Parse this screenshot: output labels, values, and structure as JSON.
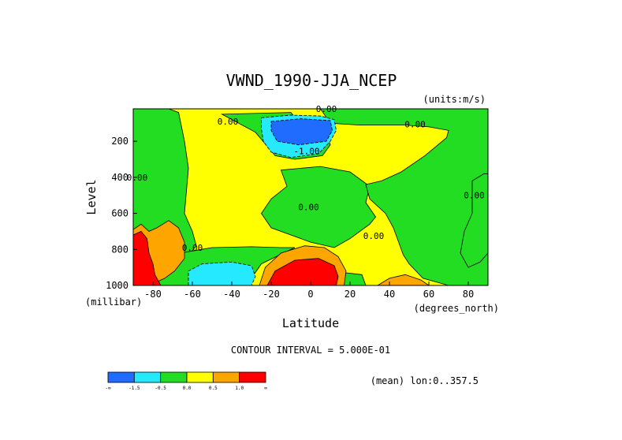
{
  "chart_data": {
    "type": "heatmap",
    "title": "VWND_1990-JJA_NCEP",
    "units_note": "(units:m/s)",
    "xlabel": "Latitude",
    "xunits": "(degrees_north)",
    "ylabel": "Level",
    "yunits": "(millibar)",
    "xlim": [
      -90,
      90
    ],
    "ylim": [
      1000,
      0
    ],
    "xticks": [
      -80,
      -60,
      -40,
      -20,
      0,
      20,
      40,
      60,
      80
    ],
    "xtick_labels": [
      "-80",
      "-60",
      "-40",
      "-20",
      "0",
      "20",
      "40",
      "60",
      "80"
    ],
    "yticks": [
      200,
      400,
      600,
      800,
      1000
    ],
    "ytick_labels": [
      "200",
      "400",
      "600",
      "800",
      "1000"
    ],
    "contour_interval_text": "CONTOUR INTERVAL = 5.000E-01",
    "mean_note": "(mean) lon:0..357.5",
    "colorbar": {
      "colors": [
        "#1f6cff",
        "#25e9ff",
        "#22dd22",
        "#ffff00",
        "#ffa500",
        "#ff0000"
      ],
      "labels": [
        "-∞",
        "-1.5",
        "-0.5",
        "0.0",
        "0.5",
        "1.0",
        "∞"
      ]
    },
    "contour_labels": [
      {
        "text": "0.00",
        "lat": 8,
        "lev": 10
      },
      {
        "text": "0.00",
        "lat": -42,
        "lev": 90
      },
      {
        "text": "-1.00",
        "lat": -2,
        "lev": 255
      },
      {
        "text": "0.00",
        "lat": 53,
        "lev": 105
      },
      {
        "text": "0.00",
        "lat": -88,
        "lev": 400
      },
      {
        "text": "0.00",
        "lat": -1,
        "lev": 565
      },
      {
        "text": "0.00",
        "lat": 83,
        "lev": 500
      },
      {
        "text": "0.00",
        "lat": 32,
        "lev": 725
      },
      {
        "text": "0.00",
        "lat": -60,
        "lev": 790
      }
    ],
    "regions": [
      {
        "level_class": "0.0 to 0.5",
        "color": "#ffff00",
        "points": [
          [
            -90,
            0
          ],
          [
            90,
            0
          ],
          [
            90,
            1000
          ],
          [
            -90,
            1000
          ]
        ]
      },
      {
        "level_class": "-0.5 to 0.0",
        "color": "#22dd22",
        "points": [
          [
            -90,
            0
          ],
          [
            -72,
            0
          ],
          [
            -67,
            40
          ],
          [
            -64,
            200
          ],
          [
            -62,
            350
          ],
          [
            -64,
            600
          ],
          [
            -60,
            700
          ],
          [
            -58,
            780
          ],
          [
            -64,
            860
          ],
          [
            -70,
            900
          ],
          [
            -82,
            980
          ],
          [
            -90,
            1000
          ]
        ]
      },
      {
        "level_class": "-0.5 to 0.0",
        "color": "#22dd22",
        "points": [
          [
            -45,
            50
          ],
          [
            -10,
            40
          ],
          [
            -3,
            130
          ],
          [
            8,
            160
          ],
          [
            10,
            220
          ],
          [
            6,
            280
          ],
          [
            -8,
            300
          ],
          [
            -18,
            280
          ],
          [
            -28,
            150
          ]
        ]
      },
      {
        "level_class": "-0.5 to 0.0",
        "color": "#22dd22",
        "points": [
          [
            -15,
            360
          ],
          [
            5,
            340
          ],
          [
            20,
            370
          ],
          [
            30,
            450
          ],
          [
            28,
            540
          ],
          [
            33,
            620
          ],
          [
            30,
            660
          ],
          [
            20,
            740
          ],
          [
            12,
            790
          ],
          [
            0,
            760
          ],
          [
            -10,
            720
          ],
          [
            -20,
            680
          ],
          [
            -25,
            600
          ],
          [
            -20,
            520
          ],
          [
            -12,
            450
          ]
        ]
      },
      {
        "level_class": "-0.5 to 0.0",
        "color": "#22dd22",
        "points": [
          [
            -66,
            820
          ],
          [
            -50,
            790
          ],
          [
            -30,
            785
          ],
          [
            -15,
            790
          ],
          [
            -8,
            790
          ],
          [
            -25,
            880
          ],
          [
            -30,
            960
          ],
          [
            -33,
            1000
          ],
          [
            -82,
            1000
          ],
          [
            -75,
            960
          ]
        ]
      },
      {
        "level_class": "-0.5 to 0.0",
        "color": "#22dd22",
        "points": [
          [
            5,
            20
          ],
          [
            80,
            10
          ],
          [
            90,
            0
          ],
          [
            90,
            1000
          ],
          [
            70,
            1000
          ],
          [
            57,
            960
          ],
          [
            50,
            880
          ],
          [
            47,
            830
          ],
          [
            45,
            770
          ],
          [
            42,
            680
          ],
          [
            38,
            600
          ],
          [
            30,
            520
          ],
          [
            28,
            440
          ],
          [
            36,
            420
          ],
          [
            46,
            370
          ],
          [
            58,
            280
          ],
          [
            69,
            180
          ],
          [
            70,
            140
          ],
          [
            60,
            120
          ],
          [
            48,
            110
          ],
          [
            25,
            110
          ],
          [
            10,
            100
          ]
        ]
      },
      {
        "level_class": "-0.5 to 0.0",
        "color": "#22dd22",
        "points": [
          [
            82,
            420
          ],
          [
            88,
            380
          ],
          [
            90,
            380
          ],
          [
            90,
            820
          ],
          [
            86,
            870
          ],
          [
            80,
            900
          ],
          [
            76,
            820
          ],
          [
            78,
            700
          ],
          [
            82,
            600
          ]
        ]
      },
      {
        "level_class": "-0.5 to 0.0",
        "color": "#22dd22",
        "points": [
          [
            18,
            930
          ],
          [
            26,
            940
          ],
          [
            28,
            1000
          ],
          [
            14,
            1000
          ]
        ]
      },
      {
        "level_class": "-1.5 to -0.5",
        "color": "#25e9ff",
        "points": [
          [
            -25,
            70
          ],
          [
            -10,
            55
          ],
          [
            5,
            60
          ],
          [
            12,
            80
          ],
          [
            13,
            140
          ],
          [
            10,
            200
          ],
          [
            4,
            270
          ],
          [
            -10,
            290
          ],
          [
            -20,
            260
          ],
          [
            -24,
            200
          ],
          [
            -25,
            130
          ]
        ]
      },
      {
        "level_class": "-1.5 to -0.5",
        "color": "#25e9ff",
        "points": [
          [
            -62,
            1000
          ],
          [
            -62,
            920
          ],
          [
            -55,
            880
          ],
          [
            -40,
            870
          ],
          [
            -30,
            890
          ],
          [
            -28,
            950
          ],
          [
            -30,
            1000
          ]
        ]
      },
      {
        "level_class": "< -1.5",
        "color": "#1f6cff",
        "points": [
          [
            -20,
            90
          ],
          [
            -5,
            75
          ],
          [
            10,
            85
          ],
          [
            11,
            140
          ],
          [
            8,
            200
          ],
          [
            -6,
            220
          ],
          [
            -17,
            200
          ],
          [
            -20,
            140
          ]
        ]
      },
      {
        "level_class": "0.5 to 1.0",
        "color": "#ffa500",
        "points": [
          [
            -26,
            1000
          ],
          [
            -23,
            900
          ],
          [
            -15,
            820
          ],
          [
            -3,
            780
          ],
          [
            7,
            790
          ],
          [
            14,
            840
          ],
          [
            18,
            920
          ],
          [
            17,
            1000
          ]
        ]
      },
      {
        "level_class": "0.5 to 1.0",
        "color": "#ffa500",
        "points": [
          [
            -90,
            690
          ],
          [
            -86,
            660
          ],
          [
            -82,
            700
          ],
          [
            -78,
            680
          ],
          [
            -72,
            640
          ],
          [
            -67,
            680
          ],
          [
            -64,
            760
          ],
          [
            -64,
            850
          ],
          [
            -69,
            920
          ],
          [
            -74,
            960
          ],
          [
            -82,
            1000
          ],
          [
            -90,
            1000
          ]
        ]
      },
      {
        "level_class": "0.5 to 1.0",
        "color": "#ffa500",
        "points": [
          [
            34,
            1000
          ],
          [
            40,
            960
          ],
          [
            48,
            940
          ],
          [
            56,
            970
          ],
          [
            60,
            1000
          ]
        ]
      },
      {
        "level_class": "> 1.0",
        "color": "#ff0000",
        "points": [
          [
            -22,
            1000
          ],
          [
            -18,
            920
          ],
          [
            -8,
            860
          ],
          [
            4,
            850
          ],
          [
            12,
            890
          ],
          [
            14,
            950
          ],
          [
            13,
            1000
          ]
        ]
      },
      {
        "level_class": "> 1.0",
        "color": "#ff0000",
        "points": [
          [
            -90,
            720
          ],
          [
            -86,
            700
          ],
          [
            -83,
            740
          ],
          [
            -82,
            820
          ],
          [
            -80,
            880
          ],
          [
            -79,
            940
          ],
          [
            -76,
            1000
          ],
          [
            -90,
            1000
          ]
        ]
      }
    ]
  }
}
